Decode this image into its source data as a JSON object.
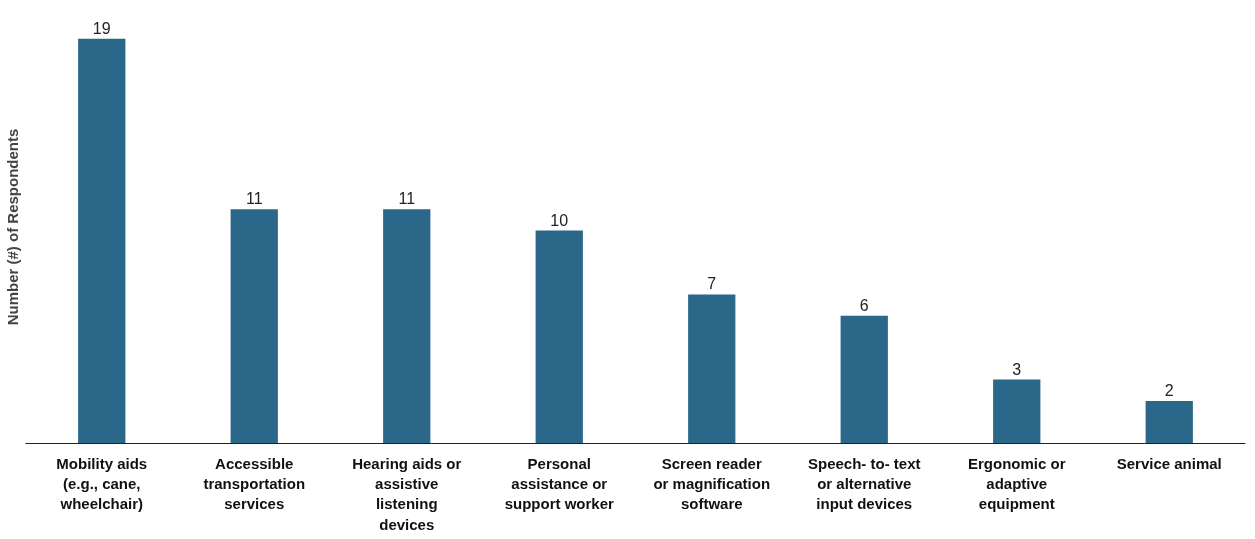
{
  "chart_data": {
    "type": "bar",
    "ylabel": "Number (#) of Respondents",
    "categories": [
      "Mobility aids\n(e.g., cane,\nwheelchair)",
      "Accessible\ntransportation\nservices",
      "Hearing aids or\nassistive\nlistening\ndevices",
      "Personal\nassistance or\nsupport worker",
      "Screen reader\nor magnification\nsoftware",
      "Speech- to- text\nor alternative\ninput devices",
      "Ergonomic or\nadaptive\nequipment",
      "Service animal"
    ],
    "values": [
      19,
      11,
      11,
      10,
      7,
      6,
      3,
      2
    ],
    "color": "#2a6788",
    "data_labels": true,
    "tick_labels": "x"
  }
}
